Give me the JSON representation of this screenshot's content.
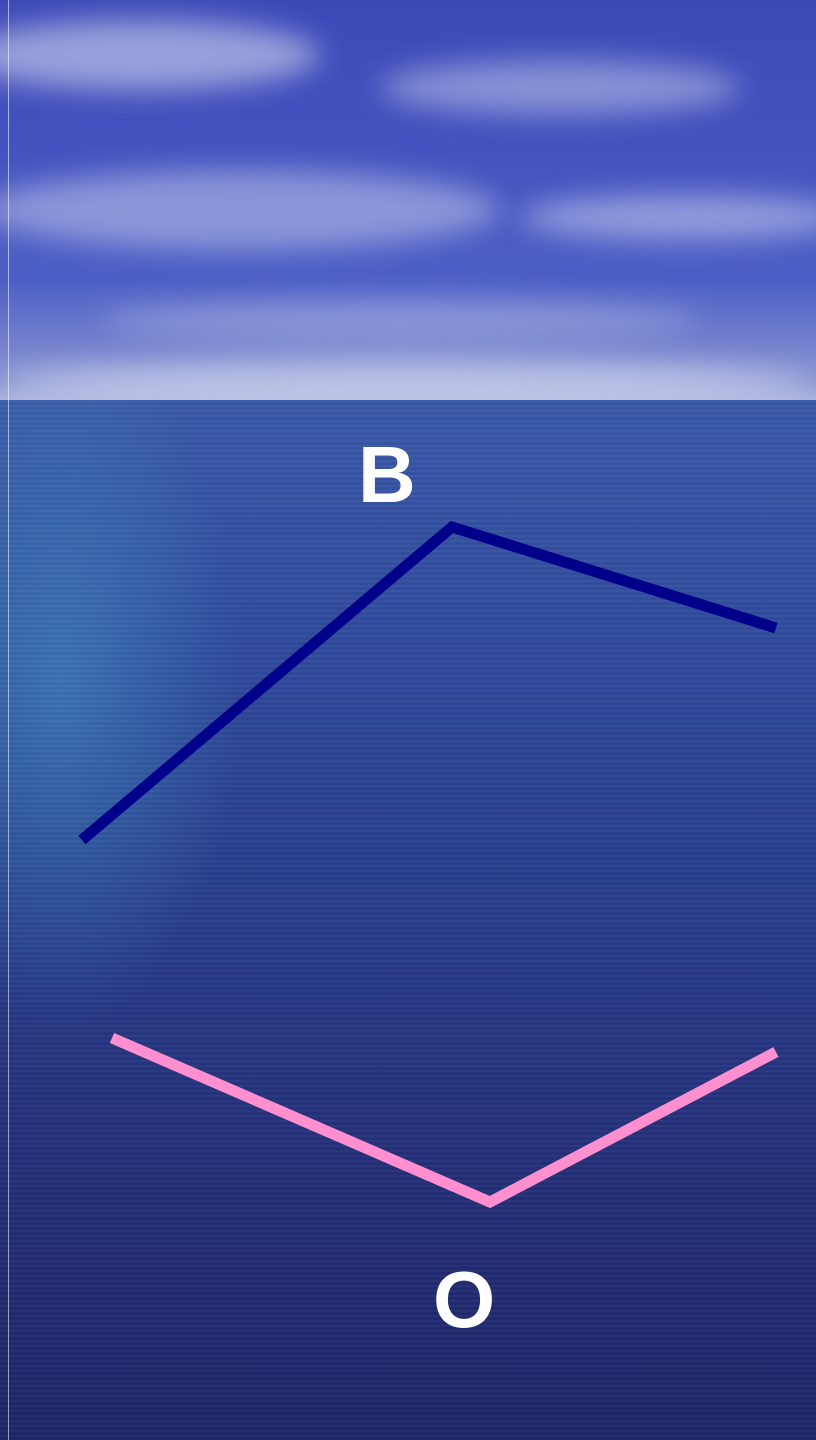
{
  "labels": {
    "top": "B",
    "bottom": "O"
  },
  "colors": {
    "upper_line": "#00008b",
    "lower_line": "#ff8fcf",
    "label_text": "#ffffff"
  },
  "shapes": {
    "upper": "inverted V",
    "lower": "V"
  }
}
